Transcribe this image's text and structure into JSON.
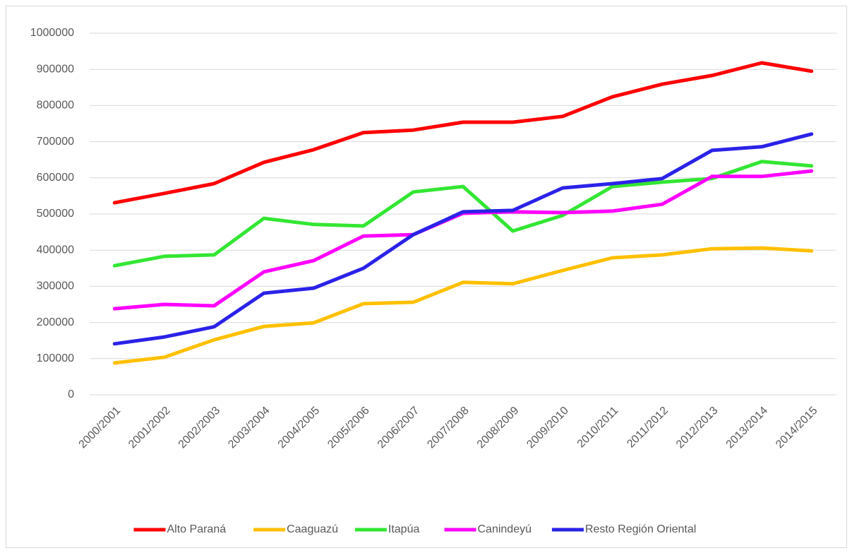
{
  "chart_data": {
    "type": "line",
    "categories": [
      "2000/2001",
      "2001/2002",
      "2002/2003",
      "2003/2004",
      "2004/2005",
      "2005/2006",
      "2006/2007",
      "2007/2008",
      "2008/2009",
      "2009/2010",
      "2010/2011",
      "2011/2012",
      "2012/2013",
      "2013/2014",
      "2014/2015"
    ],
    "series": [
      {
        "name": "Alto Paraná",
        "color": "#ff0000",
        "values": [
          531000,
          557000,
          584000,
          643000,
          678000,
          725000,
          732000,
          754000,
          754000,
          770000,
          824000,
          859000,
          883000,
          918000,
          895000
        ]
      },
      {
        "name": "Caaguazú",
        "color": "#ffc000",
        "values": [
          88000,
          104000,
          152000,
          189000,
          199000,
          252000,
          256000,
          311000,
          307000,
          344000,
          379000,
          387000,
          404000,
          406000,
          398000
        ]
      },
      {
        "name": "Itapúa",
        "color": "#33e633",
        "values": [
          357000,
          383000,
          387000,
          488000,
          471000,
          467000,
          561000,
          576000,
          453000,
          496000,
          576000,
          588000,
          598000,
          645000,
          633000
        ]
      },
      {
        "name": "Canindeyú",
        "color": "#ff00ff",
        "values": [
          238000,
          250000,
          246000,
          340000,
          371000,
          439000,
          443000,
          502000,
          506000,
          504000,
          508000,
          527000,
          604000,
          604000,
          619000
        ]
      },
      {
        "name": "Resto Región Oriental",
        "color": "#2b22e8",
        "values": [
          141000,
          160000,
          188000,
          281000,
          295000,
          350000,
          443000,
          506000,
          510000,
          572000,
          584000,
          598000,
          676000,
          686000,
          721000
        ]
      }
    ],
    "ylim": [
      0,
      1000000
    ],
    "yticks": [
      0,
      100000,
      200000,
      300000,
      400000,
      500000,
      600000,
      700000,
      800000,
      900000,
      1000000
    ],
    "grid": true,
    "legend": "bottom"
  }
}
